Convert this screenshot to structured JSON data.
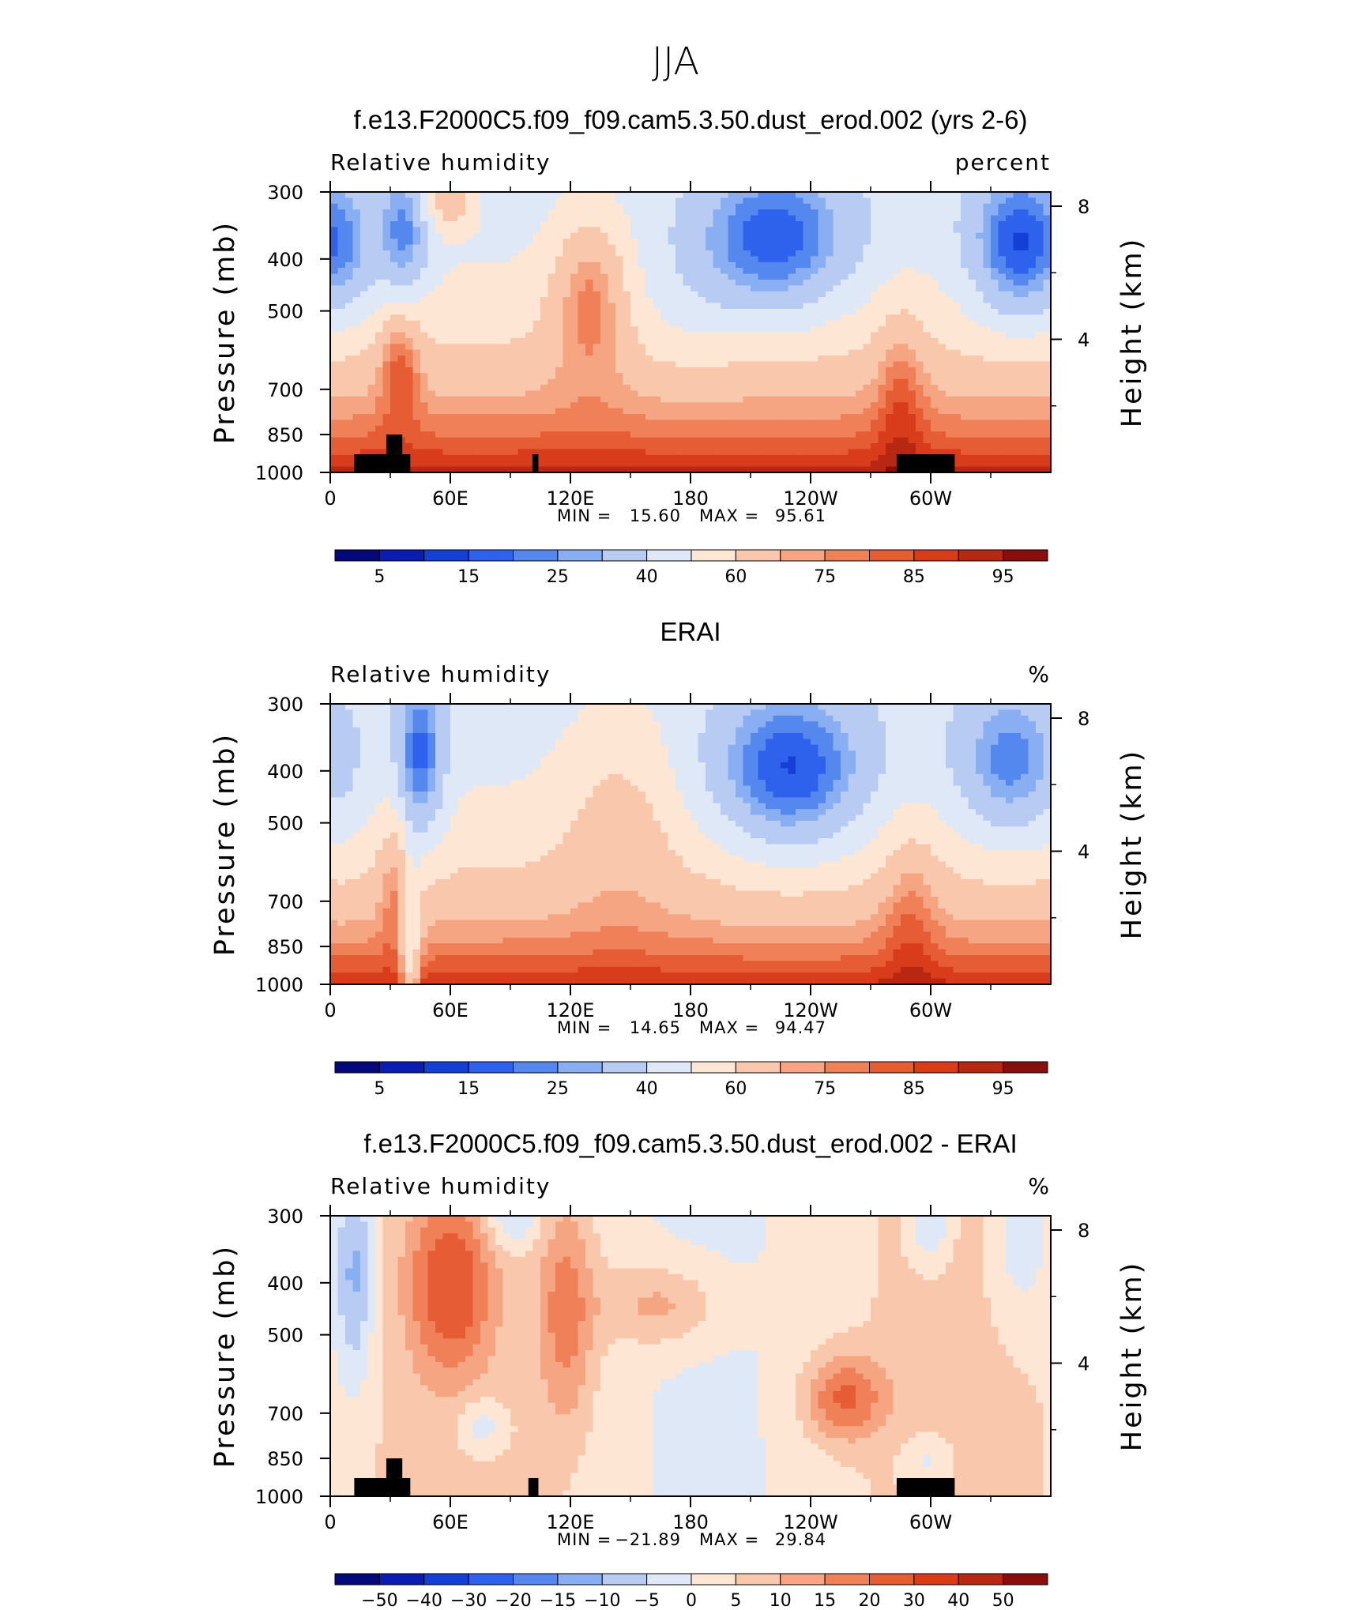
{
  "figure": {
    "suptitle": "JJA"
  },
  "chart_data": [
    {
      "type": "contour",
      "title": "f.e13.F2000C5.f09_f09.cam5.3.50.dust_erod.002 (yrs 2-6)",
      "left_string": "Relative humidity",
      "right_string": "percent",
      "ylabel": "Pressure (mb)",
      "ylabel_right": "Height (km)",
      "x_ticks": [
        "0",
        "60E",
        "120E",
        "180",
        "120W",
        "60W"
      ],
      "x_tick_values": [
        0,
        60,
        120,
        180,
        240,
        300
      ],
      "xlim": [
        0,
        360
      ],
      "y_ticks": [
        "300",
        "400",
        "500",
        "700",
        "850",
        "1000"
      ],
      "y_tick_values": [
        300,
        400,
        500,
        700,
        850,
        1000
      ],
      "ylim": [
        1000,
        300
      ],
      "y_right_ticks": [
        "8",
        "4"
      ],
      "y_right_tick_values": [
        8,
        4
      ],
      "min_label": "MIN =",
      "min_value": "15.60",
      "max_label": "MAX =",
      "max_value": "95.61",
      "colorbar_labels": [
        "5",
        "15",
        "25",
        "40",
        "60",
        "75",
        "85",
        "95"
      ],
      "colormap": "rh",
      "field": "model",
      "topography_masks": [
        [
          12,
          40
        ],
        [
          101,
          104
        ],
        [
          283,
          312
        ]
      ]
    },
    {
      "type": "contour",
      "title": "ERAI",
      "left_string": "Relative humidity",
      "right_string": "%",
      "ylabel": "Pressure (mb)",
      "ylabel_right": "Height (km)",
      "x_ticks": [
        "0",
        "60E",
        "120E",
        "180",
        "120W",
        "60W"
      ],
      "x_tick_values": [
        0,
        60,
        120,
        180,
        240,
        300
      ],
      "xlim": [
        0,
        360
      ],
      "y_ticks": [
        "300",
        "400",
        "500",
        "700",
        "850",
        "1000"
      ],
      "y_tick_values": [
        300,
        400,
        500,
        700,
        850,
        1000
      ],
      "ylim": [
        1000,
        300
      ],
      "y_right_ticks": [
        "8",
        "4"
      ],
      "y_right_tick_values": [
        8,
        4
      ],
      "min_label": "MIN =",
      "min_value": "14.65",
      "max_label": "MAX =",
      "max_value": "94.47",
      "colorbar_labels": [
        "5",
        "15",
        "25",
        "40",
        "60",
        "75",
        "85",
        "95"
      ],
      "colormap": "rh",
      "field": "obs",
      "topography_masks": []
    },
    {
      "type": "contour",
      "title": "f.e13.F2000C5.f09_f09.cam5.3.50.dust_erod.002 - ERAI",
      "left_string": "Relative humidity",
      "right_string": "%",
      "ylabel": "Pressure (mb)",
      "ylabel_right": "Height (km)",
      "x_ticks": [
        "0",
        "60E",
        "120E",
        "180",
        "120W",
        "60W"
      ],
      "x_tick_values": [
        0,
        60,
        120,
        180,
        240,
        300
      ],
      "xlim": [
        0,
        360
      ],
      "y_ticks": [
        "300",
        "400",
        "500",
        "700",
        "850",
        "1000"
      ],
      "y_tick_values": [
        300,
        400,
        500,
        700,
        850,
        1000
      ],
      "ylim": [
        1000,
        300
      ],
      "y_right_ticks": [
        "8",
        "4"
      ],
      "y_right_tick_values": [
        8,
        4
      ],
      "min_label": "MIN =",
      "min_value": "−21.89",
      "max_label": "MAX =",
      "max_value": "29.84",
      "colorbar_labels": [
        "−50",
        "−40",
        "−30",
        "−20",
        "−15",
        "−10",
        "−5",
        "0",
        "5",
        "10",
        "15",
        "20",
        "30",
        "40",
        "50"
      ],
      "colormap": "diff",
      "field": "diff",
      "topography_masks": [
        [
          12,
          40
        ],
        [
          99,
          104
        ],
        [
          283,
          312
        ]
      ]
    }
  ],
  "colors": {
    "ramp": [
      "#05087a",
      "#0a1db0",
      "#1540d6",
      "#2f62ec",
      "#5588ef",
      "#8aaef2",
      "#b8cbf3",
      "#dfe8f6",
      "#fde6d4",
      "#f9c8ac",
      "#f5a581",
      "#ef8058",
      "#e65c34",
      "#d83c1b",
      "#b82712",
      "#8a0d0b"
    ],
    "mask": "#000000",
    "axis": "#000000"
  }
}
